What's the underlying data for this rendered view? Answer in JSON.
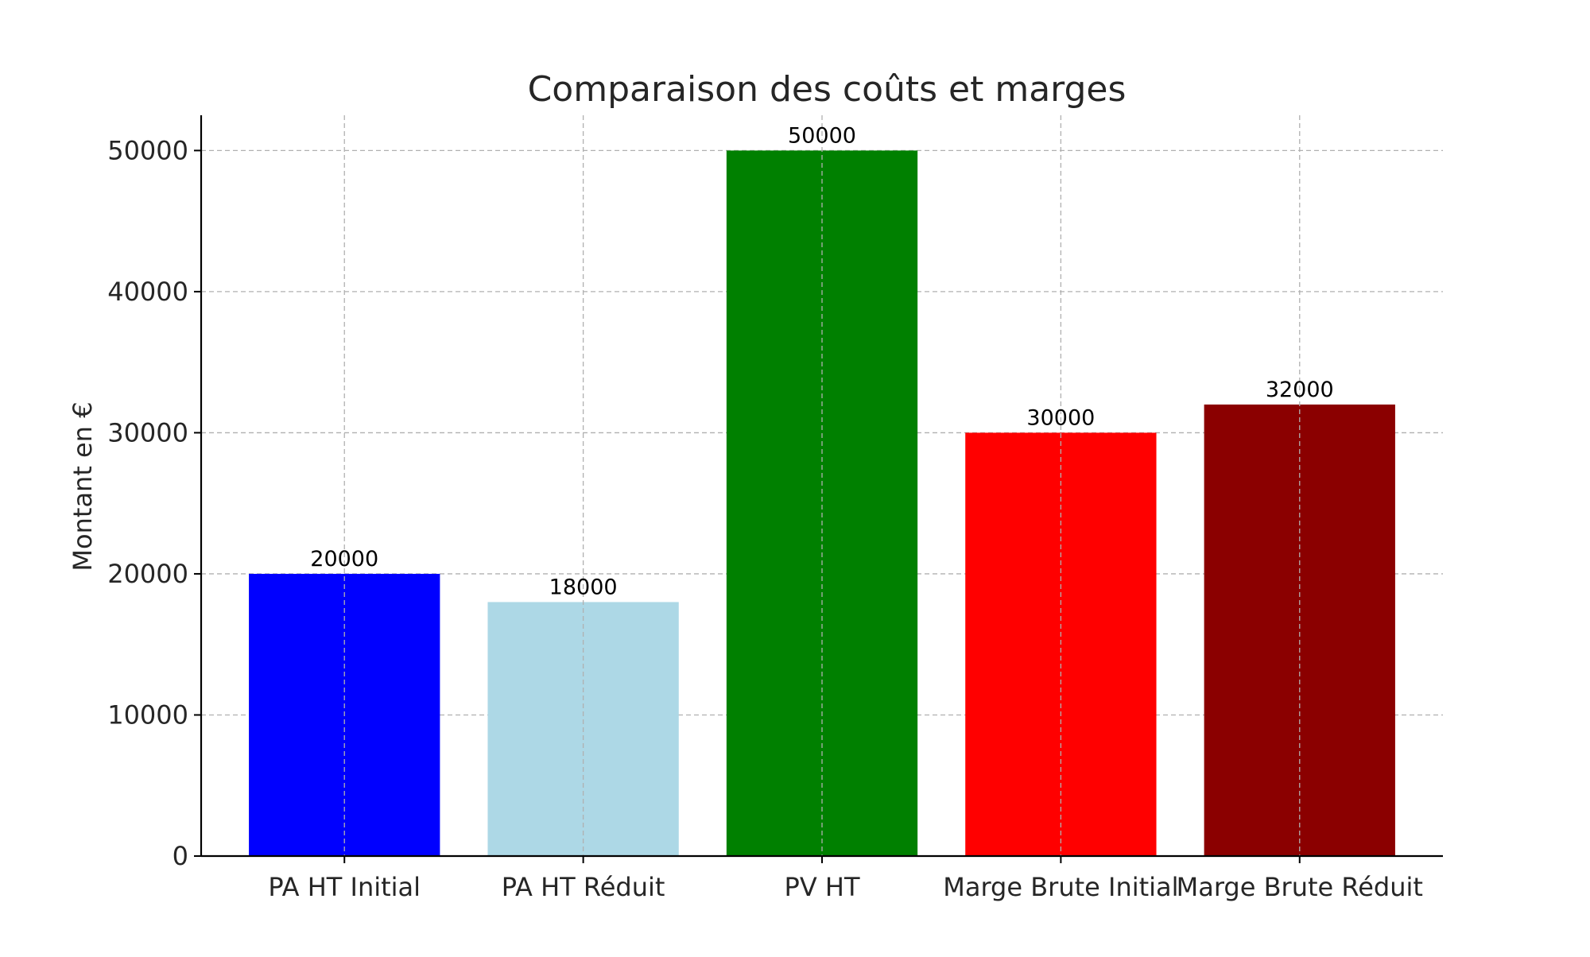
{
  "chart_data": {
    "type": "bar",
    "title": "Comparaison des coûts et marges",
    "xlabel": "",
    "ylabel": "Montant en €",
    "categories": [
      "PA HT Initial",
      "PA HT Réduit",
      "PV HT",
      "Marge Brute Initial",
      "Marge Brute Réduit"
    ],
    "values": [
      20000,
      18000,
      50000,
      30000,
      32000
    ],
    "data_labels": [
      "20000",
      "18000",
      "50000",
      "30000",
      "32000"
    ],
    "colors": [
      "#0000ff",
      "#add8e6",
      "#008000",
      "#ff0000",
      "#8b0000"
    ],
    "ylim": [
      0,
      52500
    ],
    "yticks": [
      0,
      10000,
      20000,
      30000,
      40000,
      50000
    ],
    "ytick_labels": [
      "0",
      "10000",
      "20000",
      "30000",
      "40000",
      "50000"
    ],
    "grid": true,
    "grid_color": "#b0b0b0",
    "axis_color": "#000000",
    "text_color": "#262626"
  }
}
